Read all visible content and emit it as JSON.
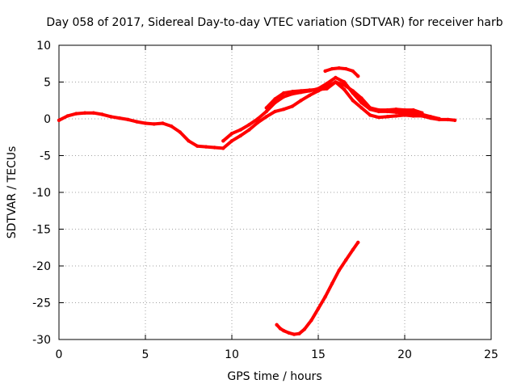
{
  "chart_data": {
    "type": "scatter",
    "title": "Day 058 of 2017, Sidereal Day-to-day VTEC variation (SDTVAR) for receiver harb",
    "xlabel": "GPS time / hours",
    "ylabel": "SDTVAR / TECUs",
    "xlim": [
      0,
      25
    ],
    "ylim": [
      -30,
      10
    ],
    "xticks": [
      0,
      5,
      10,
      15,
      20,
      25
    ],
    "yticks": [
      -30,
      -25,
      -20,
      -15,
      -10,
      -5,
      0,
      5,
      10
    ],
    "xtick_labels": [
      "0",
      "5",
      "10",
      "15",
      "20",
      "25"
    ],
    "ytick_labels": [
      "-30",
      "-25",
      "-20",
      "-15",
      "-10",
      "-5",
      "0",
      "5",
      "10"
    ],
    "grid": true,
    "series_color": "#ff0000",
    "series": [
      {
        "name": "main-track-a",
        "x": [
          0.0,
          0.5,
          1.0,
          1.5,
          2.0,
          2.5,
          3.0,
          3.5,
          4.0,
          4.5,
          5.0,
          5.5,
          6.0,
          6.5,
          7.0,
          7.5,
          8.0,
          8.5,
          9.0,
          9.5,
          10.0,
          10.5,
          11.0,
          11.5,
          12.0,
          12.5,
          13.0,
          13.5,
          14.0,
          14.5,
          15.0,
          15.5,
          16.0,
          16.5,
          17.0,
          17.5,
          18.0,
          18.5,
          19.0,
          19.5,
          20.0,
          20.5,
          21.0,
          21.5,
          22.0,
          22.5,
          22.9
        ],
        "y": [
          -0.2,
          0.4,
          0.7,
          0.8,
          0.8,
          0.6,
          0.3,
          0.1,
          -0.1,
          -0.4,
          -0.6,
          -0.7,
          -0.6,
          -1.0,
          -1.8,
          -3.0,
          -3.7,
          -3.8,
          -3.9,
          -4.0,
          -3.0,
          -2.3,
          -1.5,
          -0.5,
          0.3,
          1.0,
          1.3,
          1.7,
          2.5,
          3.2,
          3.8,
          4.4,
          5.0,
          4.0,
          2.5,
          1.5,
          0.5,
          0.2,
          0.3,
          0.4,
          0.5,
          0.4,
          0.4,
          0.1,
          -0.1,
          -0.1,
          -0.2
        ]
      },
      {
        "name": "main-track-b",
        "x": [
          9.5,
          10.0,
          10.5,
          11.0,
          11.5,
          12.0,
          12.5,
          13.0,
          13.5,
          14.0,
          14.5,
          15.0,
          15.5,
          16.0,
          16.5,
          17.0,
          17.5,
          18.0,
          18.5,
          19.0,
          19.5,
          20.0,
          20.5,
          21.0,
          21.5,
          22.0
        ],
        "y": [
          -3.0,
          -2.0,
          -1.5,
          -0.8,
          0.0,
          1.0,
          2.2,
          3.0,
          3.4,
          3.6,
          3.8,
          4.1,
          4.8,
          5.6,
          5.0,
          3.5,
          2.2,
          1.3,
          1.0,
          1.0,
          0.9,
          0.8,
          0.8,
          0.6,
          0.3,
          0.0
        ]
      },
      {
        "name": "main-track-c",
        "x": [
          12.0,
          12.5,
          13.0,
          13.5,
          14.0,
          14.5,
          15.0,
          15.5,
          16.0,
          16.5,
          17.0,
          17.5,
          18.0,
          18.5,
          19.0,
          19.5,
          20.0,
          20.5,
          21.0
        ],
        "y": [
          1.5,
          2.7,
          3.5,
          3.7,
          3.8,
          3.9,
          4.0,
          4.1,
          5.0,
          4.6,
          3.8,
          2.8,
          1.5,
          1.2,
          1.2,
          1.3,
          1.2,
          1.2,
          0.8
        ]
      },
      {
        "name": "upper-arc",
        "x": [
          15.4,
          15.8,
          16.2,
          16.6,
          17.0,
          17.3
        ],
        "y": [
          6.5,
          6.8,
          6.9,
          6.8,
          6.5,
          5.8
        ]
      },
      {
        "name": "lower-arc",
        "x": [
          12.6,
          12.8,
          13.0,
          13.3,
          13.6,
          13.9,
          14.2,
          14.6,
          15.0,
          15.4,
          15.8,
          16.2,
          16.6,
          17.0,
          17.3
        ],
        "y": [
          -28.0,
          -28.5,
          -28.8,
          -29.1,
          -29.3,
          -29.2,
          -28.6,
          -27.4,
          -25.8,
          -24.2,
          -22.4,
          -20.6,
          -19.2,
          -17.8,
          -16.8
        ]
      }
    ]
  }
}
